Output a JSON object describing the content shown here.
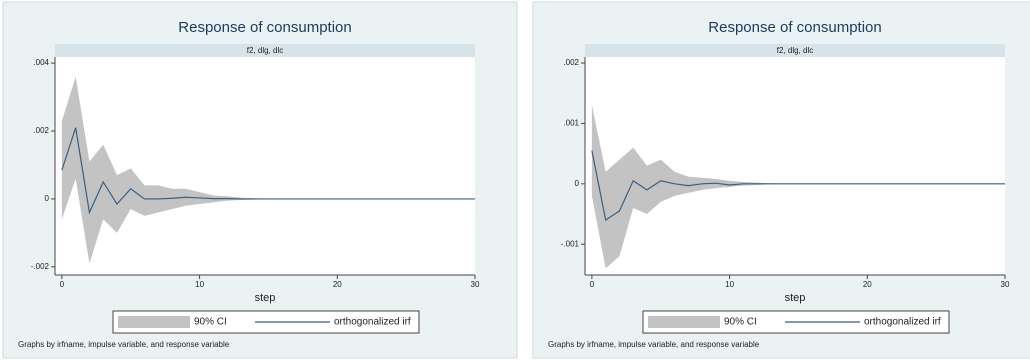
{
  "chart_data": [
    {
      "type": "line",
      "title": "Response of consumption",
      "subtitle": "f2, dlg, dlc",
      "xlabel": "step",
      "note": "Graphs by irfname, impulse variable, and response variable",
      "x": [
        0,
        1,
        2,
        3,
        4,
        5,
        6,
        7,
        8,
        9,
        10,
        11,
        12,
        13,
        14,
        15,
        16,
        17,
        18,
        19,
        20,
        21,
        22,
        23,
        24,
        25,
        26,
        27,
        28,
        29,
        30
      ],
      "series": [
        {
          "name": "90% CI",
          "color": "#c3c3c3",
          "lower": [
            -0.0006,
            0.0006,
            -0.0019,
            -0.0006,
            -0.001,
            -0.0003,
            -0.0005,
            -0.0004,
            -0.0003,
            -0.0002,
            -0.00015,
            -0.0001,
            -5e-05,
            -3e-05,
            -2e-05,
            -1e-05,
            0,
            0,
            0,
            0,
            0,
            0,
            0,
            0,
            0,
            0,
            0,
            0,
            0,
            0,
            0
          ],
          "upper": [
            0.0023,
            0.0036,
            0.0011,
            0.0016,
            0.0007,
            0.0009,
            0.0004,
            0.0004,
            0.0003,
            0.0003,
            0.0002,
            0.0001,
            8e-05,
            4e-05,
            2e-05,
            1e-05,
            0,
            0,
            0,
            0,
            0,
            0,
            0,
            0,
            0,
            0,
            0,
            0,
            0,
            0,
            0
          ]
        },
        {
          "name": "orthogonalized irf",
          "color": "#3a5f7f",
          "values": [
            0.00085,
            0.0021,
            -0.0004,
            0.0005,
            -0.00015,
            0.0003,
            0,
            0,
            2e-05,
            5e-05,
            3e-05,
            1e-05,
            1e-05,
            0,
            0,
            0,
            0,
            0,
            0,
            0,
            0,
            0,
            0,
            0,
            0,
            0,
            0,
            0,
            0,
            0,
            0
          ]
        }
      ],
      "xlim": [
        -0.5,
        30
      ],
      "xticks": [
        0,
        10,
        20,
        30
      ],
      "ylim": [
        -0.00224,
        0.00418
      ],
      "yticks": [
        {
          "value": -0.002,
          "label": "-.002"
        },
        0,
        {
          "value": 0.002,
          "label": ".002"
        },
        {
          "value": 0.004,
          "label": ".004"
        }
      ]
    },
    {
      "type": "line",
      "title": "Response of consumption",
      "subtitle": "f2, dlg, dlc",
      "xlabel": "step",
      "note": "Graphs by irfname, impulse variable, and response variable",
      "x": [
        0,
        1,
        2,
        3,
        4,
        5,
        6,
        7,
        8,
        9,
        10,
        11,
        12,
        13,
        14,
        15,
        16,
        17,
        18,
        19,
        20,
        21,
        22,
        23,
        24,
        25,
        26,
        27,
        28,
        29,
        30
      ],
      "series": [
        {
          "name": "90% CI",
          "color": "#c3c3c3",
          "lower": [
            -0.0002,
            -0.0014,
            -0.0012,
            -0.0004,
            -0.0005,
            -0.0003,
            -0.0002,
            -0.00015,
            -0.0001,
            -7e-05,
            -5e-05,
            -3e-05,
            -2e-05,
            -1e-05,
            0,
            0,
            0,
            0,
            0,
            0,
            0,
            0,
            0,
            0,
            0,
            0,
            0,
            0,
            0,
            0,
            0
          ],
          "upper": [
            0.0013,
            0.0002,
            0.0004,
            0.0006,
            0.0003,
            0.0004,
            0.0002,
            0.00012,
            0.0001,
            8e-05,
            5e-05,
            3e-05,
            2e-05,
            1e-05,
            0,
            0,
            0,
            0,
            0,
            0,
            0,
            0,
            0,
            0,
            0,
            0,
            0,
            0,
            0,
            0,
            0
          ]
        },
        {
          "name": "orthogonalized irf",
          "color": "#3a5f7f",
          "values": [
            0.00055,
            -0.0006,
            -0.00045,
            5e-05,
            -0.0001,
            5e-05,
            0,
            -3e-05,
            0,
            1e-05,
            -2e-05,
            0,
            0,
            0,
            0,
            0,
            0,
            0,
            0,
            0,
            0,
            0,
            0,
            0,
            0,
            0,
            0,
            0,
            0,
            0,
            0
          ]
        }
      ],
      "xlim": [
        -0.5,
        30
      ],
      "xticks": [
        0,
        10,
        20,
        30
      ],
      "ylim": [
        -0.00151,
        0.0021
      ],
      "yticks": [
        {
          "value": -0.001,
          "label": "-.001"
        },
        0,
        {
          "value": 0.001,
          "label": ".001"
        },
        {
          "value": 0.002,
          "label": ".002"
        }
      ]
    }
  ]
}
